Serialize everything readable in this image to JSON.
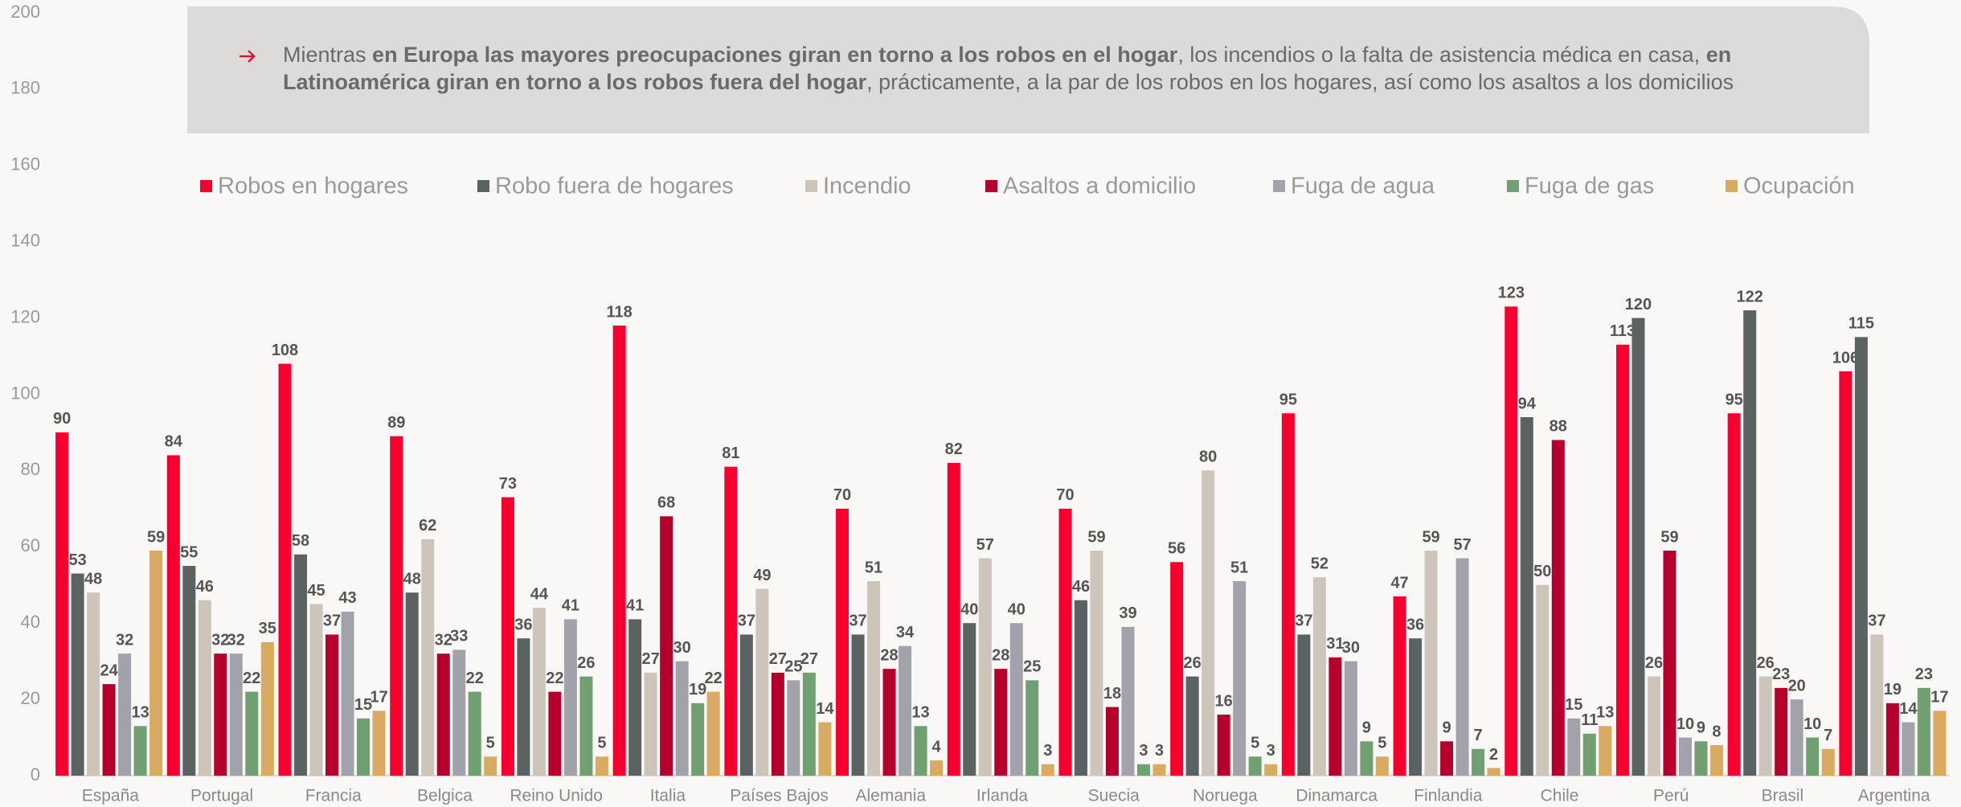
{
  "chart_data": {
    "type": "bar",
    "annotation": [
      [
        {
          "text": "Mientras ",
          "bold": false
        },
        {
          "text": "en Europa las mayores preocupaciones giran en torno a los robos en el hogar",
          "bold": true
        },
        {
          "text": ", los incendios o la falta de asistencia médica en casa, ",
          "bold": false
        },
        {
          "text": "en",
          "bold": true
        }
      ],
      [
        {
          "text": "Latinoamérica giran en torno a los robos fuera del hogar",
          "bold": true
        },
        {
          "text": ", prácticamente, a la par de los robos en los hogares, así como los asaltos a los domicilios",
          "bold": false
        }
      ]
    ],
    "categories": [
      "España",
      "Portugal",
      "Francia",
      "Belgica",
      "Reino Unido",
      "Italia",
      "Países Bajos",
      "Alemania",
      "Irlanda",
      "Suecia",
      "Noruega",
      "Dinamarca",
      "Finlandia",
      "Chile",
      "Perú",
      "Brasil",
      "Argentina"
    ],
    "series": [
      {
        "name": "Robos en hogares",
        "color": "#f5002f",
        "values": [
          90,
          84,
          108,
          89,
          73,
          118,
          81,
          70,
          82,
          70,
          56,
          95,
          47,
          123,
          113,
          95,
          106
        ]
      },
      {
        "name": "Robo fuera de hogares",
        "color": "#5b6262",
        "values": [
          53,
          55,
          58,
          48,
          36,
          41,
          37,
          37,
          40,
          46,
          26,
          37,
          36,
          94,
          120,
          122,
          115
        ]
      },
      {
        "name": "Incendio",
        "color": "#cdc4ba",
        "values": [
          48,
          46,
          45,
          62,
          44,
          27,
          49,
          51,
          57,
          59,
          80,
          52,
          59,
          50,
          26,
          26,
          37
        ]
      },
      {
        "name": "Asaltos a domicilio",
        "color": "#b5002d",
        "values": [
          24,
          32,
          37,
          32,
          22,
          68,
          27,
          28,
          28,
          18,
          16,
          31,
          9,
          88,
          59,
          23,
          19
        ]
      },
      {
        "name": "Fuga de agua",
        "color": "#a2a2aa",
        "values": [
          32,
          32,
          43,
          33,
          41,
          30,
          25,
          34,
          40,
          39,
          51,
          30,
          57,
          15,
          10,
          20,
          14
        ]
      },
      {
        "name": "Fuga de gas",
        "color": "#709f72",
        "values": [
          13,
          22,
          15,
          22,
          26,
          19,
          27,
          13,
          25,
          3,
          5,
          9,
          7,
          11,
          9,
          10,
          23
        ]
      },
      {
        "name": "Ocupación",
        "color": "#d9aa62",
        "values": [
          59,
          35,
          17,
          5,
          5,
          22,
          14,
          4,
          3,
          3,
          3,
          5,
          2,
          13,
          8,
          7,
          17
        ]
      }
    ],
    "ylim": [
      0,
      200
    ],
    "yticks": [
      0,
      20,
      40,
      60,
      80,
      100,
      120,
      140,
      160,
      180,
      200
    ],
    "grid": false
  }
}
